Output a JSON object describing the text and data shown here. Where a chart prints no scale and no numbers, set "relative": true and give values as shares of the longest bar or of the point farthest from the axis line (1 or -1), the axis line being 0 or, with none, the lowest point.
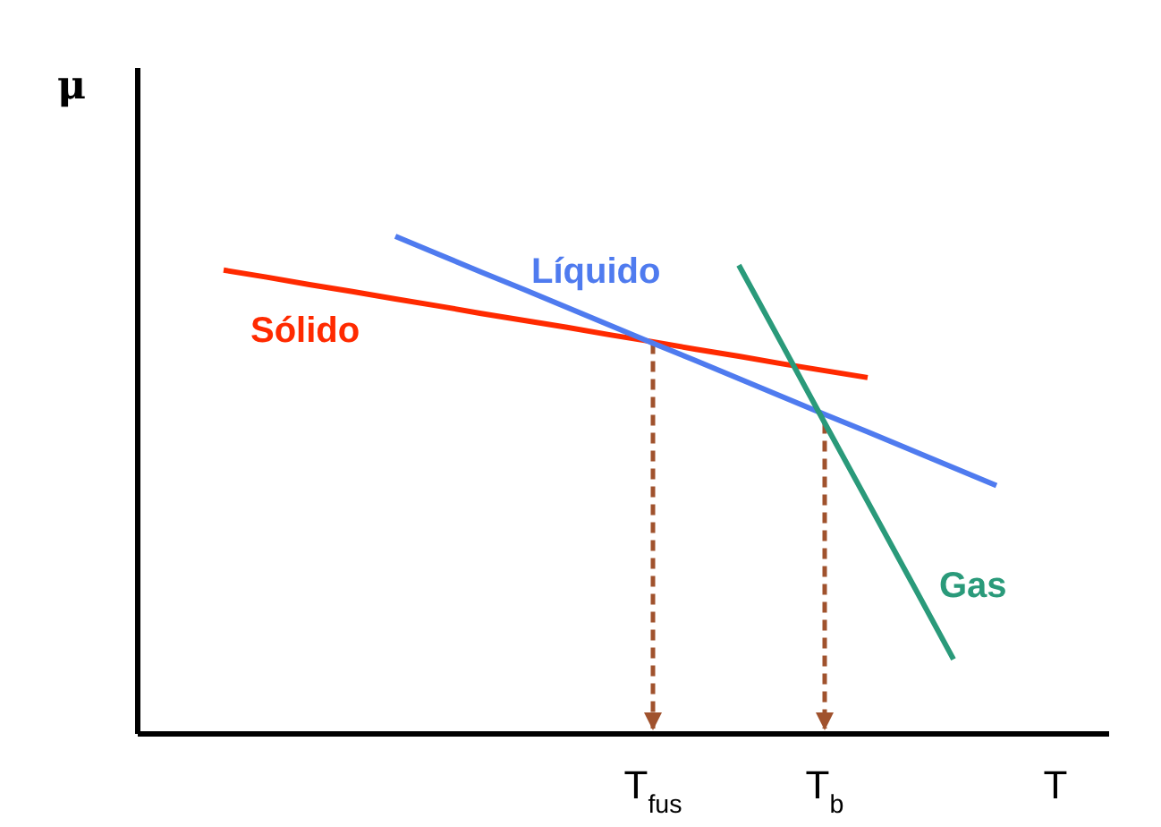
{
  "chart_data": {
    "type": "line",
    "relative": true,
    "xlabel": "T",
    "ylabel": "μ",
    "marker": "none",
    "line_style": "solid",
    "categories": [
      null,
      null,
      null,
      null,
      null,
      null,
      null,
      null,
      null,
      null,
      null,
      "T$_{fus}$",
      null,
      null,
      null,
      "T$_{b}$",
      null,
      null,
      null,
      null
    ],
    "series": [
      {
        "name": "Sólido",
        "color": "#ff2a00",
        "values": [
          null,
          0.932,
          0.918,
          0.903,
          0.889,
          0.874,
          0.86,
          0.845,
          0.831,
          0.817,
          0.802,
          0.788,
          0.773,
          0.759,
          0.744,
          0.73,
          0.716,
          null,
          null,
          null
        ]
      },
      {
        "name": "Líquido",
        "color": "#4f7bef",
        "values": [
          null,
          null,
          null,
          null,
          null,
          1,
          0.964,
          0.928,
          0.893,
          0.857,
          0.821,
          0.785,
          0.75,
          0.714,
          0.678,
          0.642,
          0.607,
          0.571,
          0.535,
          0.499
        ]
      },
      {
        "name": "Gas",
        "color": "#2a9a7a",
        "values": [
          null,
          null,
          null,
          null,
          null,
          null,
          null,
          null,
          null,
          null,
          null,
          null,
          null,
          0.942,
          0.784,
          0.625,
          0.467,
          0.309,
          0.15,
          null
        ]
      }
    ]
  }
}
